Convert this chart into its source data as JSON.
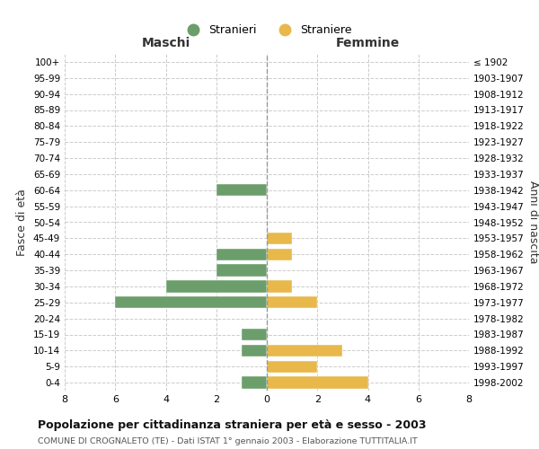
{
  "age_groups": [
    "0-4",
    "5-9",
    "10-14",
    "15-19",
    "20-24",
    "25-29",
    "30-34",
    "35-39",
    "40-44",
    "45-49",
    "50-54",
    "55-59",
    "60-64",
    "65-69",
    "70-74",
    "75-79",
    "80-84",
    "85-89",
    "90-94",
    "95-99",
    "100+"
  ],
  "birth_years": [
    "1998-2002",
    "1993-1997",
    "1988-1992",
    "1983-1987",
    "1978-1982",
    "1973-1977",
    "1968-1972",
    "1963-1967",
    "1958-1962",
    "1953-1957",
    "1948-1952",
    "1943-1947",
    "1938-1942",
    "1933-1937",
    "1928-1932",
    "1923-1927",
    "1918-1922",
    "1913-1917",
    "1908-1912",
    "1903-1907",
    "≤ 1902"
  ],
  "stranieri_maschi": [
    1,
    0,
    1,
    1,
    0,
    6,
    4,
    2,
    2,
    0,
    0,
    0,
    2,
    0,
    0,
    0,
    0,
    0,
    0,
    0,
    0
  ],
  "straniere_femmine": [
    4,
    2,
    3,
    0,
    0,
    2,
    1,
    0,
    1,
    1,
    0,
    0,
    0,
    0,
    0,
    0,
    0,
    0,
    0,
    0,
    0
  ],
  "color_stranieri": "#6b9e6b",
  "color_straniere": "#e8b84b",
  "title": "Popolazione per cittadinanza straniera per età e sesso - 2003",
  "subtitle": "COMUNE DI CROGNALETO (TE) - Dati ISTAT 1° gennaio 2003 - Elaborazione TUTTITALIA.IT",
  "xlabel_left": "Maschi",
  "xlabel_right": "Femmine",
  "ylabel_left": "Fasce di età",
  "ylabel_right": "Anni di nascita",
  "legend_stranieri": "Stranieri",
  "legend_straniere": "Straniere",
  "xlim": 8,
  "background_color": "#ffffff",
  "grid_color": "#cccccc"
}
